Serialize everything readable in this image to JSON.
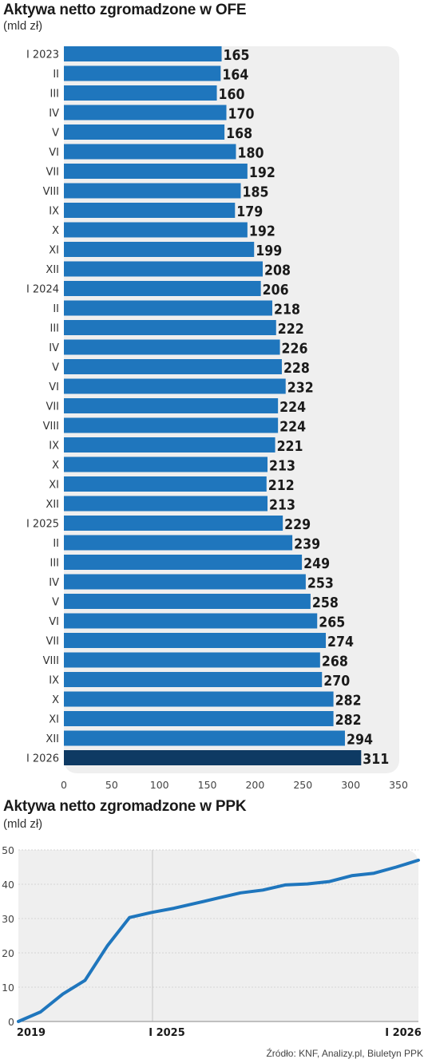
{
  "chart_data": [
    {
      "type": "bar",
      "orientation": "horizontal",
      "title": "Aktywa netto zgromadzone w OFE",
      "subtitle": "(mld zł)",
      "categories": [
        "I 2023",
        "II",
        "III",
        "IV",
        "V",
        "VI",
        "VII",
        "VIII",
        "IX",
        "X",
        "XI",
        "XII",
        "I 2024",
        "II",
        "III",
        "IV",
        "V",
        "VI",
        "VII",
        "VIII",
        "IX",
        "X",
        "XI",
        "XII",
        "I 2025",
        "II",
        "III",
        "IV",
        "V",
        "VI",
        "VII",
        "VIII",
        "IX",
        "X",
        "XI",
        "XII",
        "I 2026"
      ],
      "values": [
        165,
        164,
        160,
        170,
        168,
        180,
        192,
        185,
        179,
        192,
        199,
        208,
        206,
        218,
        222,
        226,
        228,
        232,
        224,
        224,
        221,
        213,
        212,
        213,
        229,
        239,
        249,
        253,
        258,
        265,
        274,
        268,
        270,
        282,
        282,
        294,
        311
      ],
      "xlim": [
        0,
        350
      ],
      "xticks": [
        0,
        50,
        100,
        150,
        200,
        250,
        300,
        350
      ],
      "highlight_index": 36,
      "colors": {
        "bar": "#1f76bd",
        "highlight": "#0e3a63",
        "panel": "#efefef"
      }
    },
    {
      "type": "line",
      "title": "Aktywa netto zgromadzone w PPK",
      "subtitle": "(mld zł)",
      "ylim": [
        0,
        50
      ],
      "yticks": [
        0,
        10,
        20,
        30,
        40,
        50
      ],
      "xticks": [
        "2019",
        "I 2025",
        "I 2026"
      ],
      "series": [
        {
          "values": [
            0,
            2.8,
            8,
            12,
            22,
            30.3,
            31.8,
            33,
            34.5,
            36,
            37.5,
            38.3,
            39.8,
            40.1,
            40.8,
            42.5,
            43.2,
            45,
            47
          ]
        }
      ],
      "colors": {
        "line": "#1f76bd",
        "panel": "#efefef",
        "grid": "#d4d4d4"
      }
    }
  ],
  "source": "Źródło: KNF, Analizy.pl, Biuletyn PPK"
}
